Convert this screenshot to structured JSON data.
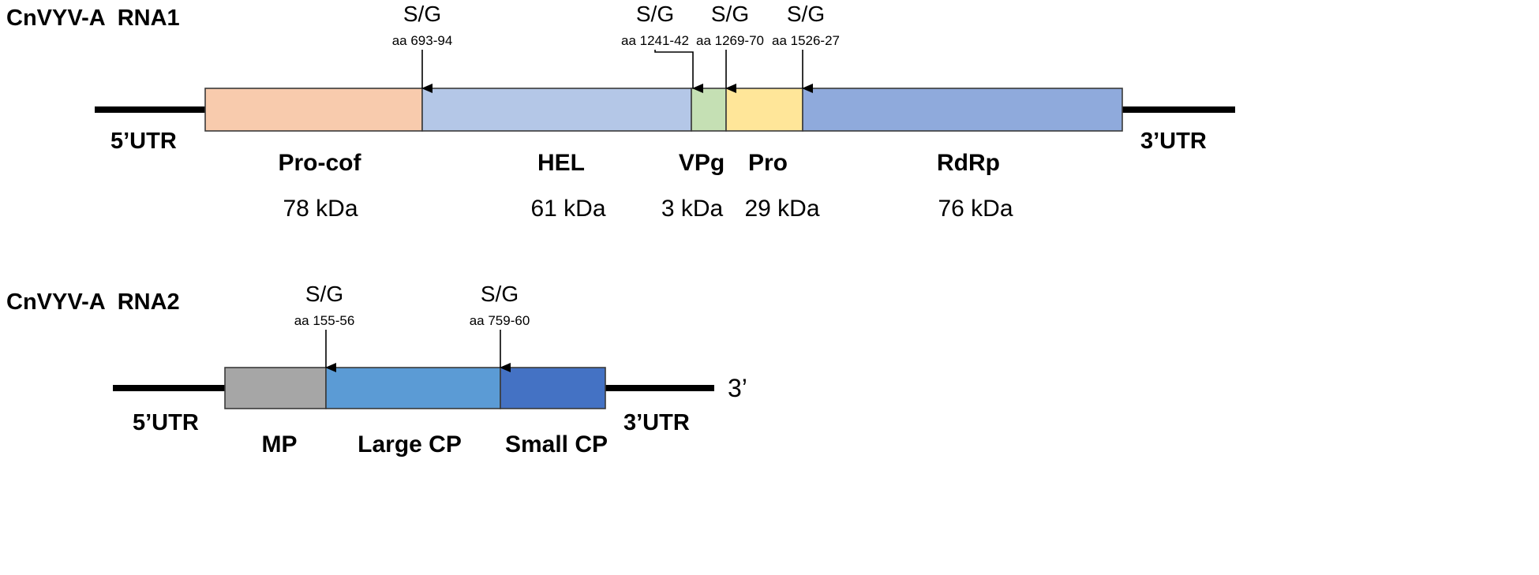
{
  "rna1": {
    "title": "CnVYV-A  RNA1",
    "utr5": "5’UTR",
    "utr3": "3’UTR",
    "segments": [
      {
        "name": "Pro-cof",
        "kda": "78 kDa",
        "color": "#f8cbad"
      },
      {
        "name": "HEL",
        "kda": "61 kDa",
        "color": "#b4c7e7"
      },
      {
        "name": "VPg",
        "kda": "3 kDa",
        "color": "#c5e0b4"
      },
      {
        "name": "Pro",
        "kda": "29 kDa",
        "color": "#ffe699"
      },
      {
        "name": "RdRp",
        "kda": "76 kDa",
        "color": "#8faadc"
      }
    ],
    "cleavage_sites": [
      {
        "label": "S/G",
        "position": "aa 693-94"
      },
      {
        "label": "S/G",
        "position": "aa 1241-42"
      },
      {
        "label": "S/G",
        "position": "aa 1269-70"
      },
      {
        "label": "S/G",
        "position": "aa 1526-27"
      }
    ]
  },
  "rna2": {
    "title": "CnVYV-A  RNA2",
    "utr5": "5’UTR",
    "utr3": "3’UTR",
    "end_mark": "3’",
    "segments": [
      {
        "name": "MP",
        "color": "#a6a6a6"
      },
      {
        "name": "Large CP",
        "color": "#5b9bd5"
      },
      {
        "name": "Small CP",
        "color": "#4472c4"
      }
    ],
    "cleavage_sites": [
      {
        "label": "S/G",
        "position": "aa 155-56"
      },
      {
        "label": "S/G",
        "position": "aa 759-60"
      }
    ]
  },
  "icons": {
    "cleavage_arrow": "arrow-down-icon"
  }
}
